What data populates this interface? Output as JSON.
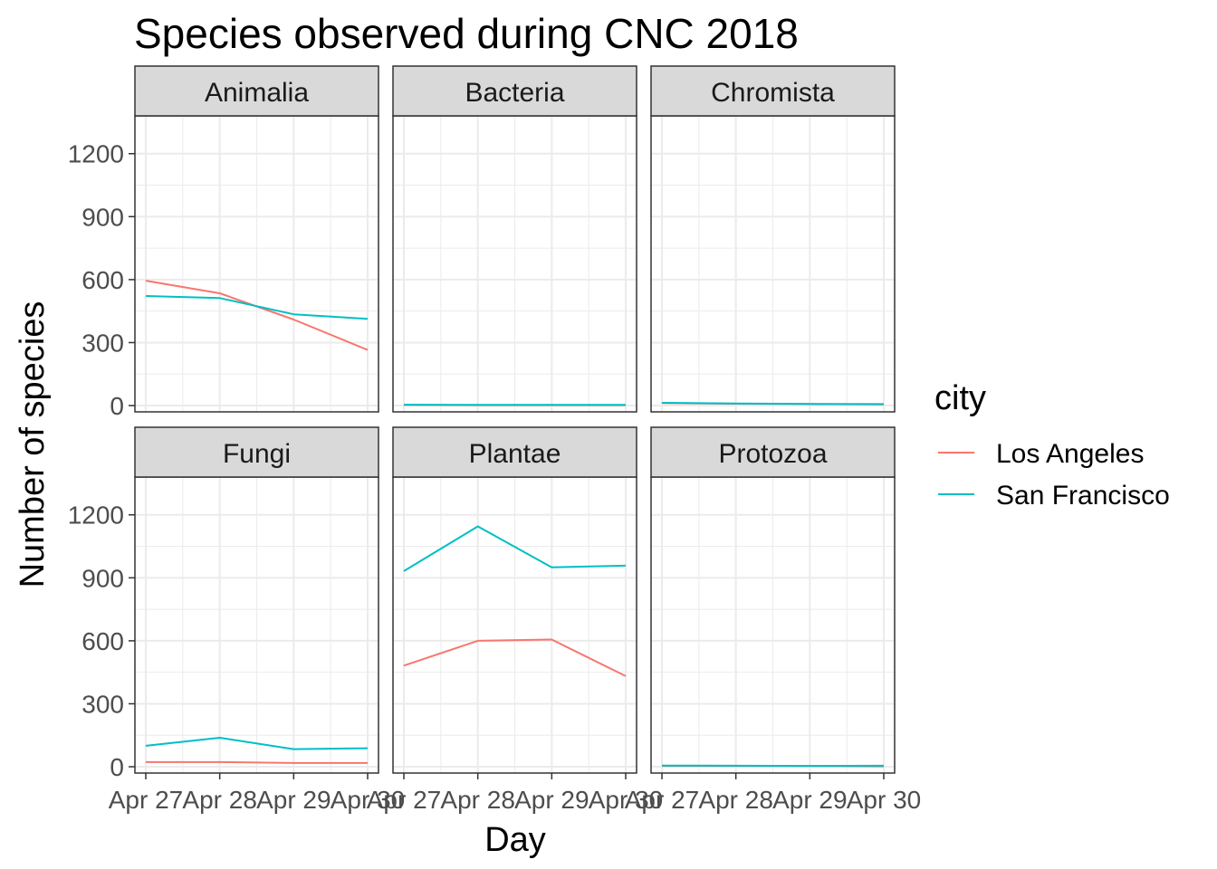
{
  "chart_data": {
    "type": "line",
    "title": "Species observed during CNC 2018",
    "xlabel": "Day",
    "ylabel": "Number of species",
    "ylim": [
      -30,
      1380
    ],
    "yticks": [
      0,
      300,
      600,
      900,
      1200
    ],
    "x": [
      "Apr 27",
      "Apr 28",
      "Apr 29",
      "Apr 30"
    ],
    "legend": {
      "title": "city",
      "position": "right",
      "entries": [
        {
          "name": "Los Angeles",
          "color": "#F8766D"
        },
        {
          "name": "San Francisco",
          "color": "#00BFC4"
        }
      ]
    },
    "colors": {
      "Los Angeles": "#F8766D",
      "San Francisco": "#00BFC4",
      "strip_fill": "#d9d9d9",
      "grid": "#ebebeb",
      "panel_border": "#333333"
    },
    "facets": [
      {
        "name": "Animalia",
        "series": [
          {
            "name": "Los Angeles",
            "values": [
              595,
              535,
              410,
              265
            ]
          },
          {
            "name": "San Francisco",
            "values": [
              522,
              512,
              435,
              413
            ]
          }
        ]
      },
      {
        "name": "Bacteria",
        "series": [
          {
            "name": "Los Angeles",
            "values": [
              3,
              2,
              2,
              2
            ]
          },
          {
            "name": "San Francisco",
            "values": [
              4,
              3,
              3,
              3
            ]
          }
        ]
      },
      {
        "name": "Chromista",
        "series": [
          {
            "name": "Los Angeles",
            "values": [
              12,
              9,
              7,
              6
            ]
          },
          {
            "name": "San Francisco",
            "values": [
              13,
              10,
              8,
              7
            ]
          }
        ]
      },
      {
        "name": "Fungi",
        "series": [
          {
            "name": "Los Angeles",
            "values": [
              22,
              22,
              18,
              18
            ]
          },
          {
            "name": "San Francisco",
            "values": [
              100,
              138,
              84,
              88
            ]
          }
        ]
      },
      {
        "name": "Plantae",
        "series": [
          {
            "name": "Los Angeles",
            "values": [
              482,
              600,
              606,
              432
            ]
          },
          {
            "name": "San Francisco",
            "values": [
              932,
              1145,
              950,
              958
            ]
          }
        ]
      },
      {
        "name": "Protozoa",
        "series": [
          {
            "name": "Los Angeles",
            "values": [
              4,
              4,
              3,
              2
            ]
          },
          {
            "name": "San Francisco",
            "values": [
              6,
              5,
              4,
              5
            ]
          }
        ]
      }
    ]
  }
}
